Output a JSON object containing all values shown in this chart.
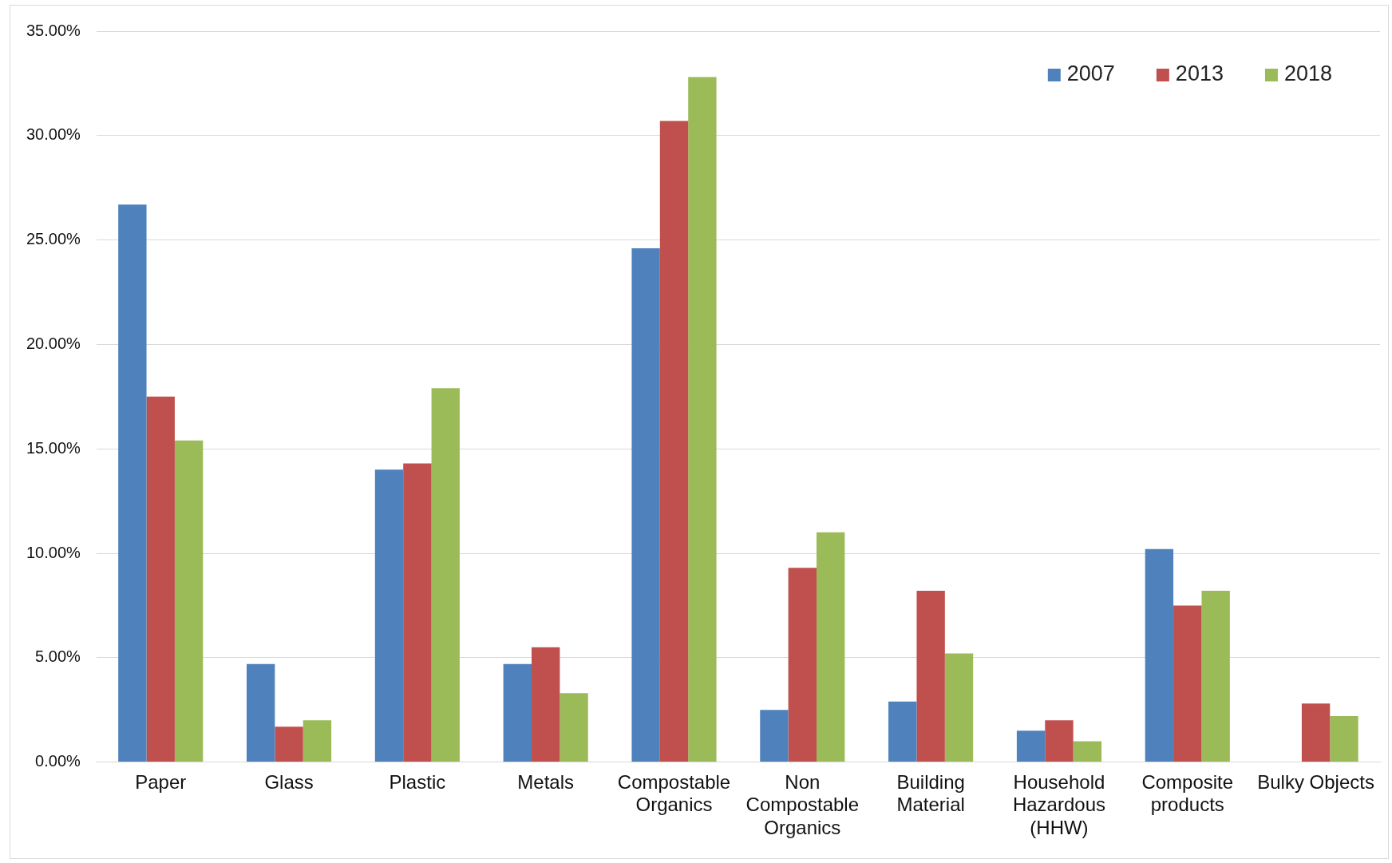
{
  "chart_data": {
    "type": "bar",
    "categories": [
      "Paper",
      "Glass",
      "Plastic",
      "Metals",
      "Compostable Organics",
      "Non Compostable Organics",
      "Building Material",
      "Household Hazardous (HHW)",
      "Composite products",
      "Bulky Objects"
    ],
    "series": [
      {
        "name": "2007",
        "color": "#4f81bd",
        "values": [
          26.7,
          4.7,
          14.0,
          4.7,
          24.6,
          2.5,
          2.9,
          1.5,
          10.2,
          null
        ]
      },
      {
        "name": "2013",
        "color": "#c0504d",
        "values": [
          17.5,
          1.7,
          14.3,
          5.5,
          30.7,
          9.3,
          8.2,
          2.0,
          7.5,
          2.8
        ]
      },
      {
        "name": "2018",
        "color": "#9bbb59",
        "values": [
          15.4,
          2.0,
          17.9,
          3.3,
          32.8,
          11.0,
          5.2,
          1.0,
          8.2,
          2.2
        ]
      }
    ],
    "ylim": [
      0,
      35
    ],
    "yticks": [
      {
        "value": 0,
        "label": "0.00%"
      },
      {
        "value": 5,
        "label": "5.00%"
      },
      {
        "value": 10,
        "label": "10.00%"
      },
      {
        "value": 15,
        "label": "15.00%"
      },
      {
        "value": 20,
        "label": "20.00%"
      },
      {
        "value": 25,
        "label": "25.00%"
      },
      {
        "value": 30,
        "label": "30.00%"
      },
      {
        "value": 35,
        "label": "35.00%"
      }
    ],
    "grid": "y",
    "legend": "top right"
  }
}
